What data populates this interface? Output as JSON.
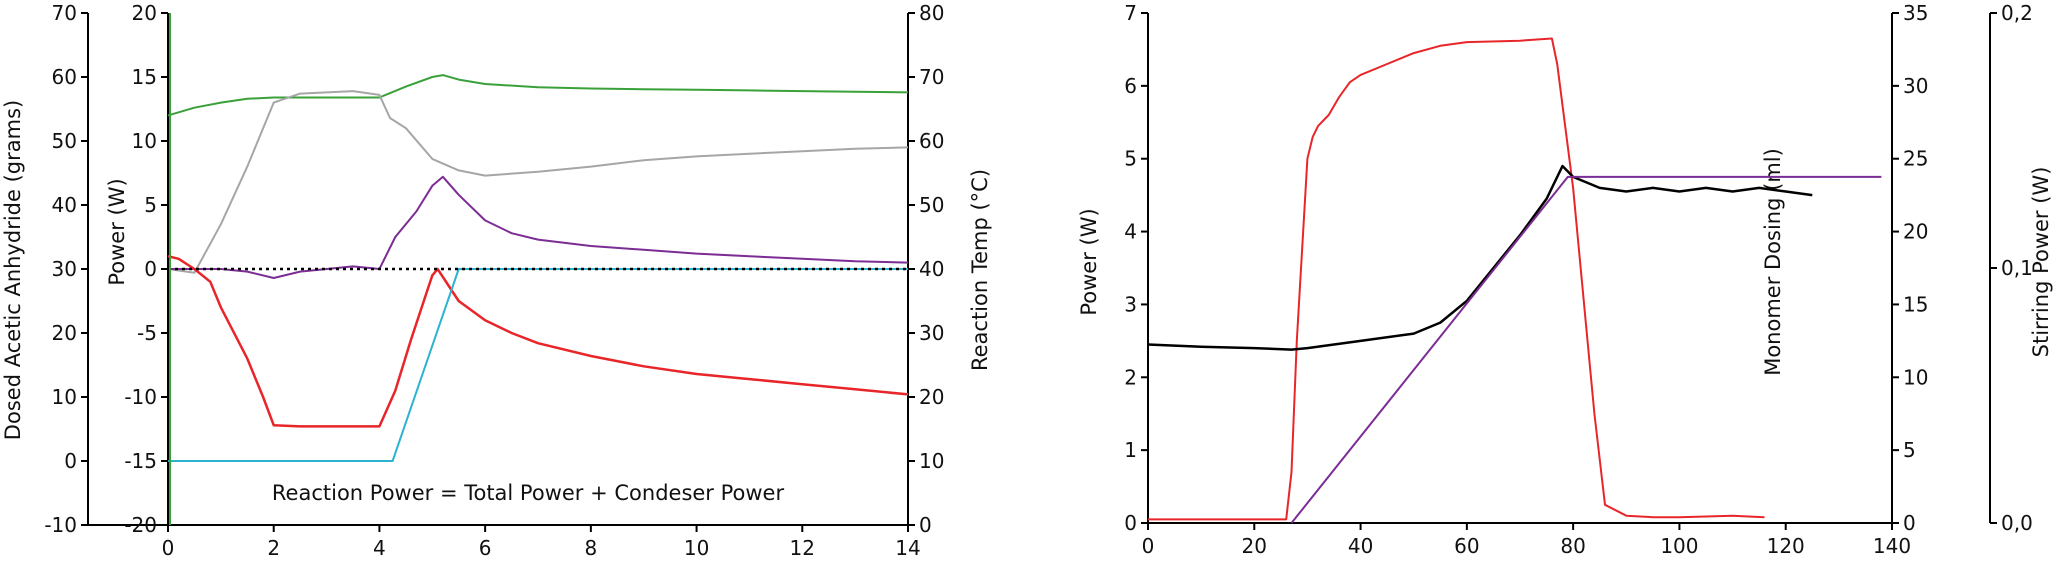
{
  "chart_data": [
    {
      "type": "line",
      "annotation": "Reaction Power = Total Power + Condeser Power",
      "xlim": [
        0,
        14
      ],
      "x_ticks": [
        "0",
        "2",
        "4",
        "6",
        "8",
        "10",
        "12",
        "14"
      ],
      "axes": {
        "dosed": {
          "label": "Dosed Acetic Anhydride (grams)",
          "range": [
            -10,
            70
          ],
          "ticks": [
            "-10",
            "0",
            "10",
            "20",
            "30",
            "40",
            "50",
            "60",
            "70"
          ]
        },
        "power": {
          "label": "Power (W)",
          "range": [
            -20,
            20
          ],
          "ticks": [
            "-20",
            "-15",
            "-10",
            "-5",
            "0",
            "5",
            "10",
            "15",
            "20"
          ]
        },
        "temp": {
          "label": "Reaction Temp (°C)",
          "range": [
            0,
            80
          ],
          "ticks": [
            "0",
            "10",
            "20",
            "30",
            "40",
            "50",
            "60",
            "70",
            "80"
          ]
        }
      },
      "series": [
        {
          "color": "#3aa13a",
          "axis": "temp",
          "x": [
            0,
            0.5,
            1.0,
            1.5,
            2.0,
            2.5,
            3.0,
            3.5,
            4.0,
            4.5,
            5.0,
            5.2,
            5.5,
            6,
            7,
            8,
            9,
            10,
            11,
            12,
            13,
            14
          ],
          "y": [
            64,
            65.2,
            66,
            66.6,
            66.8,
            66.8,
            66.8,
            66.8,
            66.8,
            68.5,
            70,
            70.3,
            69.6,
            68.9,
            68.4,
            68.2,
            68.1,
            68,
            67.9,
            67.8,
            67.7,
            67.6
          ]
        },
        {
          "color": "#a6a6a6",
          "axis": "power",
          "x": [
            0,
            0.5,
            1.0,
            1.5,
            2.0,
            2.5,
            3.0,
            3.5,
            4.0,
            4.2,
            4.5,
            5.0,
            5.5,
            6,
            7,
            8,
            9,
            10,
            11,
            12,
            13,
            14
          ],
          "y": [
            0,
            -0.3,
            3.5,
            8,
            13,
            13.7,
            13.8,
            13.9,
            13.6,
            11.8,
            11,
            8.6,
            7.7,
            7.3,
            7.6,
            8,
            8.5,
            8.8,
            9,
            9.2,
            9.4,
            9.5
          ]
        },
        {
          "color": "#7b2d94",
          "axis": "power",
          "x": [
            0,
            0.5,
            1.0,
            1.5,
            2.0,
            2.5,
            3.0,
            3.5,
            4.0,
            4.3,
            4.7,
            5.0,
            5.2,
            5.5,
            6,
            6.5,
            7,
            8,
            9,
            10,
            11,
            12,
            13,
            14
          ],
          "y": [
            0,
            0,
            0,
            -0.2,
            -0.7,
            -0.2,
            0,
            0.2,
            0,
            2.5,
            4.5,
            6.5,
            7.2,
            5.8,
            3.8,
            2.8,
            2.3,
            1.8,
            1.5,
            1.2,
            1,
            0.8,
            0.6,
            0.5
          ]
        },
        {
          "color": "#e8262a",
          "axis": "power",
          "x": [
            0,
            0.2,
            0.5,
            0.8,
            1.0,
            1.5,
            1.8,
            2.0,
            2.5,
            3.0,
            3.5,
            4.0,
            4.3,
            4.6,
            5.0,
            5.1,
            5.5,
            6,
            6.5,
            7,
            8,
            9,
            10,
            11,
            12,
            13,
            14
          ],
          "y": [
            1,
            0.8,
            0,
            -1,
            -3,
            -7,
            -10,
            -12.2,
            -12.3,
            -12.3,
            -12.3,
            -12.3,
            -9.5,
            -5.5,
            -0.5,
            0,
            -2.5,
            -4,
            -5,
            -5.8,
            -6.8,
            -7.6,
            -8.2,
            -8.6,
            -9,
            -9.4,
            -9.8
          ]
        },
        {
          "color": "#2cb3cf",
          "axis": "dosed",
          "x": [
            0,
            4.25,
            5.5,
            14
          ],
          "y": [
            0,
            0,
            30,
            30
          ]
        },
        {
          "color": "#000000",
          "axis": "power",
          "dashed": true,
          "x": [
            0,
            14
          ],
          "y": [
            0,
            0
          ]
        }
      ]
    },
    {
      "type": "line",
      "xlim": [
        0,
        140
      ],
      "x_ticks": [
        "0",
        "20",
        "40",
        "60",
        "80",
        "100",
        "120",
        "140"
      ],
      "axes": {
        "power": {
          "label": "Power (W)",
          "range": [
            0,
            7
          ],
          "ticks": [
            "0",
            "1",
            "2",
            "3",
            "4",
            "5",
            "6",
            "7"
          ]
        },
        "monomer": {
          "label": "Monomer Dosing (ml)",
          "range": [
            0,
            35
          ],
          "ticks": [
            "0",
            "5",
            "10",
            "15",
            "20",
            "25",
            "30",
            "35"
          ]
        },
        "stirring": {
          "label": "Stirring Power (W)",
          "range": [
            0,
            0.2
          ],
          "ticks": [
            "0,0",
            "0,1",
            "0,2"
          ]
        }
      },
      "series": [
        {
          "color": "#e8262a",
          "axis": "power",
          "x": [
            0,
            10,
            20,
            26,
            27,
            28,
            30,
            31,
            32,
            34,
            36,
            38,
            40,
            45,
            50,
            55,
            60,
            70,
            76,
            77,
            80,
            84,
            86,
            90,
            95,
            100,
            110,
            116
          ],
          "y": [
            0.05,
            0.05,
            0.05,
            0.05,
            0.7,
            2.5,
            5.0,
            5.3,
            5.45,
            5.6,
            5.85,
            6.05,
            6.15,
            6.3,
            6.45,
            6.55,
            6.6,
            6.62,
            6.65,
            6.3,
            4.6,
            1.5,
            0.25,
            0.1,
            0.08,
            0.08,
            0.1,
            0.08
          ]
        },
        {
          "color": "#000000",
          "axis": "power",
          "x": [
            0,
            10,
            20,
            27,
            30,
            40,
            50,
            55,
            60,
            65,
            70,
            75,
            78,
            80,
            85,
            90,
            95,
            100,
            105,
            110,
            115,
            120,
            125
          ],
          "y": [
            2.45,
            2.42,
            2.4,
            2.38,
            2.4,
            2.5,
            2.6,
            2.75,
            3.05,
            3.5,
            3.95,
            4.45,
            4.9,
            4.75,
            4.6,
            4.55,
            4.6,
            4.55,
            4.6,
            4.55,
            4.6,
            4.55,
            4.5
          ]
        },
        {
          "color": "#7b2d94",
          "axis": "power",
          "x": [
            27,
            79,
            138
          ],
          "y": [
            0,
            4.75,
            4.75
          ]
        }
      ]
    }
  ]
}
